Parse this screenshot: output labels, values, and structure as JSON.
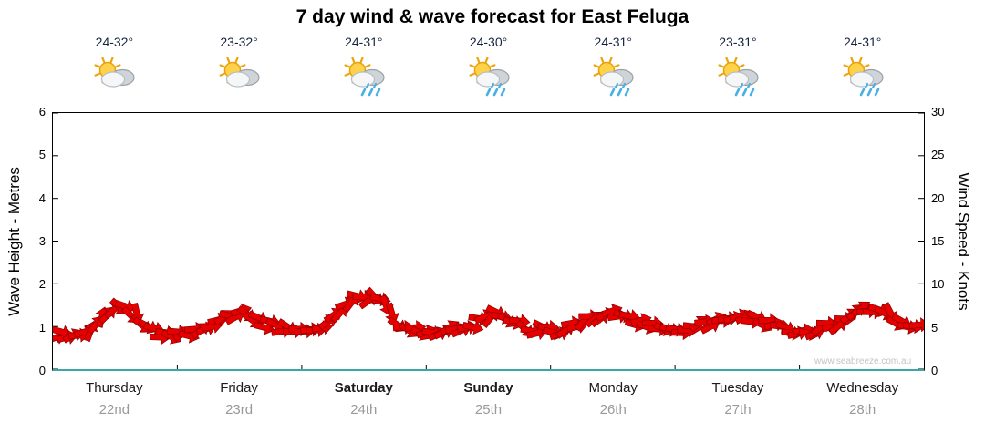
{
  "title": "7 day wind & wave forecast for East Feluga",
  "watermark": "www.seabreeze.com.au",
  "colors": {
    "arrow": "#e60000",
    "arrow_outline": "#8f0000",
    "bottom_axis": "#3aa6a6",
    "date_text": "#9a9a9a",
    "rain_drop": "#49b0e6",
    "sun": "#ffd24a"
  },
  "axes": {
    "left_label": "Wave Height - Metres",
    "right_label": "Wind Speed - Knots",
    "left_ticks": [
      0,
      1,
      2,
      3,
      4,
      5,
      6
    ],
    "right_ticks": [
      0,
      5,
      10,
      15,
      20,
      25,
      30
    ],
    "left_range": [
      0,
      6
    ],
    "right_range": [
      0,
      30
    ]
  },
  "days": [
    {
      "name": "Thursday",
      "date": "22nd",
      "temp": "24-32°",
      "icon": "sun-cloud",
      "bold": false
    },
    {
      "name": "Friday",
      "date": "23rd",
      "temp": "23-32°",
      "icon": "sun-cloud",
      "bold": false
    },
    {
      "name": "Saturday",
      "date": "24th",
      "temp": "24-31°",
      "icon": "sun-cloud-rain",
      "bold": true
    },
    {
      "name": "Sunday",
      "date": "25th",
      "temp": "24-30°",
      "icon": "sun-cloud-rain",
      "bold": true
    },
    {
      "name": "Monday",
      "date": "26th",
      "temp": "24-31°",
      "icon": "sun-cloud-rain",
      "bold": false
    },
    {
      "name": "Tuesday",
      "date": "27th",
      "temp": "23-31°",
      "icon": "sun-cloud-rain",
      "bold": false
    },
    {
      "name": "Wednesday",
      "date": "28th",
      "temp": "24-31°",
      "icon": "sun-cloud-rain",
      "bold": false
    }
  ],
  "chart_data": {
    "type": "line",
    "description": "Band of red wind-direction arrows plotted against the right axis (wind speed, knots); values sampled ~3-hourly across 7 days, 8 samples per day",
    "categories": [
      "Thursday 22nd",
      "Friday 23rd",
      "Saturday 24th",
      "Sunday 25th",
      "Monday 26th",
      "Tuesday 27th",
      "Wednesday 28th"
    ],
    "samples_per_day": 8,
    "series": [
      {
        "name": "Wind Speed (knots)",
        "values": [
          4,
          4,
          4.5,
          6.5,
          7.5,
          6.5,
          4.5,
          4,
          4,
          4.5,
          5,
          6,
          6.5,
          5.5,
          5,
          4.5,
          4.5,
          5,
          6.5,
          8,
          8.5,
          7.5,
          5,
          4.5,
          4.5,
          4.5,
          5,
          5.5,
          6.5,
          6,
          5,
          4.5,
          4.5,
          5,
          6,
          6.5,
          6.5,
          5.5,
          5,
          4.5,
          4.5,
          5,
          5.5,
          6,
          6,
          5.5,
          5,
          4.5,
          4.5,
          5,
          5.5,
          6.5,
          7,
          6.5,
          5,
          5
        ]
      }
    ],
    "ylim_left_metres": [
      0,
      6
    ],
    "ylim_right_knots": [
      0,
      30
    ],
    "grid": false,
    "legend": false
  }
}
